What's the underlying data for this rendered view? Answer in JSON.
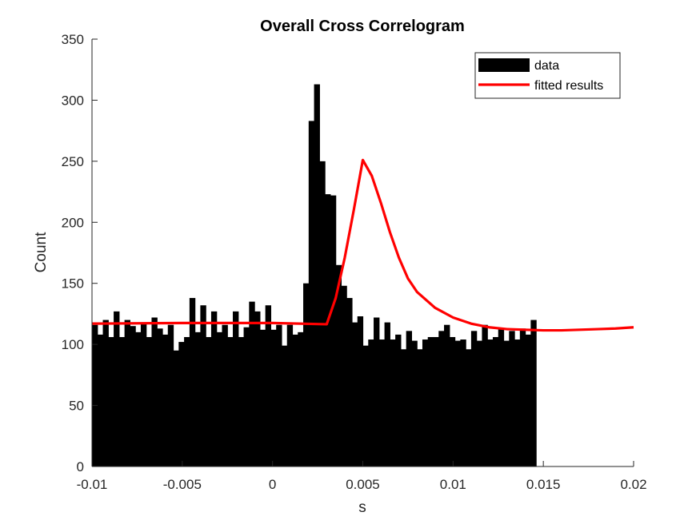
{
  "chart_data": {
    "type": "bar",
    "title": "Overall Cross Correlogram",
    "xlabel": "s",
    "ylabel": "Count",
    "xlim": [
      -0.01,
      0.02
    ],
    "ylim": [
      0,
      350
    ],
    "xticks": [
      -0.01,
      -0.005,
      0,
      0.005,
      0.01,
      0.015,
      0.02
    ],
    "xtick_labels": [
      "-0.01",
      "-0.005",
      "0",
      "0.005",
      "0.01",
      "0.015",
      "0.02"
    ],
    "yticks": [
      0,
      50,
      100,
      150,
      200,
      250,
      300,
      350
    ],
    "ytick_labels": [
      "0",
      "50",
      "100",
      "150",
      "200",
      "250",
      "300",
      "350"
    ],
    "grid": false,
    "legend_position": "top-right",
    "bin_width": 0.0003,
    "series": [
      {
        "name": "data",
        "kind": "histogram",
        "color": "#000000",
        "bin_start": -0.01,
        "values": [
          116,
          108,
          120,
          106,
          127,
          106,
          120,
          115,
          110,
          118,
          106,
          122,
          113,
          108,
          116,
          95,
          102,
          106,
          138,
          110,
          132,
          106,
          127,
          110,
          116,
          106,
          127,
          106,
          114,
          135,
          127,
          112,
          132,
          112,
          116,
          99,
          116,
          108,
          110,
          150,
          283,
          313,
          250,
          223,
          222,
          165,
          148,
          138,
          118,
          123,
          99,
          104,
          122,
          104,
          118,
          104,
          108,
          96,
          111,
          103,
          96,
          104,
          106,
          106,
          111,
          116,
          106,
          103,
          104,
          96,
          111,
          103,
          116,
          104,
          106,
          113,
          103,
          111,
          104,
          113,
          108,
          120
        ]
      },
      {
        "name": "fitted results",
        "kind": "line",
        "color": "#ff0000",
        "points": [
          [
            -0.01,
            117
          ],
          [
            -0.005,
            117.5
          ],
          [
            0,
            117.5
          ],
          [
            0.003,
            116.5
          ],
          [
            0.0035,
            138
          ],
          [
            0.004,
            171
          ],
          [
            0.0045,
            210
          ],
          [
            0.005,
            251
          ],
          [
            0.0055,
            238
          ],
          [
            0.006,
            216
          ],
          [
            0.0065,
            192
          ],
          [
            0.007,
            171
          ],
          [
            0.0075,
            154
          ],
          [
            0.008,
            143
          ],
          [
            0.009,
            130
          ],
          [
            0.01,
            122
          ],
          [
            0.011,
            117
          ],
          [
            0.012,
            114
          ],
          [
            0.013,
            112.5
          ],
          [
            0.014,
            112
          ],
          [
            0.015,
            111.5
          ],
          [
            0.016,
            111.5
          ],
          [
            0.017,
            112
          ],
          [
            0.018,
            112.5
          ],
          [
            0.019,
            113
          ],
          [
            0.02,
            114
          ]
        ]
      }
    ]
  }
}
